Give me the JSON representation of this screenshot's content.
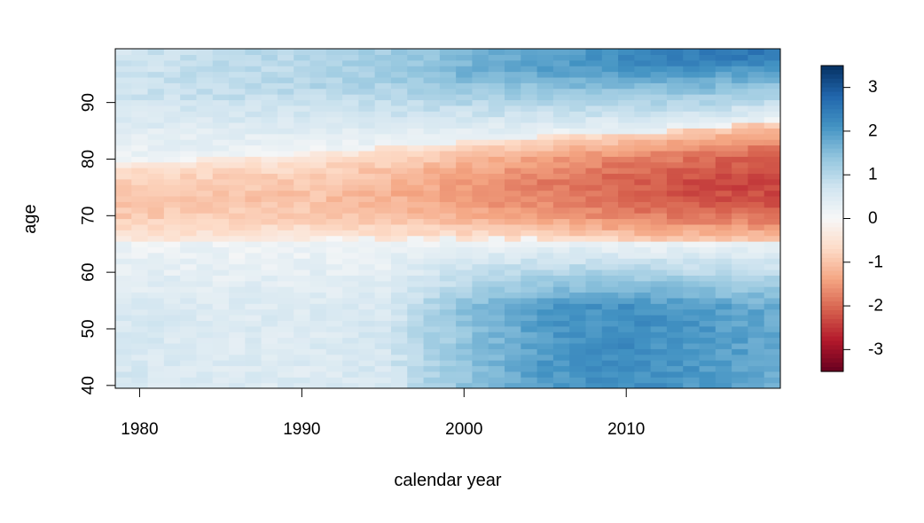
{
  "chart_data": {
    "type": "heatmap",
    "title": "",
    "xlabel": "calendar year",
    "ylabel": "age",
    "x_range": [
      1979,
      2019
    ],
    "y_range": [
      40,
      99
    ],
    "xlim": [
      1978.5,
      2019.5
    ],
    "ylim": [
      39.5,
      99.5
    ],
    "x_ticks": [
      "1980",
      "1990",
      "2000",
      "2010"
    ],
    "y_ticks": [
      "40",
      "50",
      "60",
      "70",
      "80",
      "90"
    ],
    "value_range": [
      -3.5,
      3.5
    ],
    "colorbar_ticks": [
      "3",
      "2",
      "1",
      "0",
      "-1",
      "-2",
      "-3"
    ],
    "colormap": "RdBu",
    "colors": [
      "#67001f",
      "#b2182b",
      "#d6604d",
      "#f4a582",
      "#fddbc7",
      "#f7f7f7",
      "#d1e5f0",
      "#92c5de",
      "#4393c3",
      "#2166ac",
      "#053061"
    ],
    "value_model": {
      "description": "Approximate cell values by year (rows) sampled every 5 years",
      "years": [
        1979,
        1985,
        1990,
        1995,
        2000,
        2005,
        2010,
        2015,
        2019
      ],
      "band_center_age": [
        72.5,
        73,
        73.5,
        74,
        74.5,
        75,
        75,
        75.5,
        76
      ],
      "band_half_width": [
        7,
        7.2,
        7.5,
        8,
        8.5,
        9,
        9.5,
        10,
        10.5
      ],
      "band_peak_value": [
        -1.0,
        -1.0,
        -1.0,
        -1.2,
        -1.5,
        -1.8,
        -2.1,
        -2.3,
        -2.4
      ],
      "young_ages_value": [
        0.6,
        0.5,
        0.5,
        0.6,
        1.4,
        2.0,
        2.2,
        2.0,
        1.8
      ],
      "old_ages_value": [
        0.7,
        0.9,
        1.0,
        1.2,
        1.6,
        1.9,
        2.2,
        2.4,
        2.5
      ]
    }
  }
}
